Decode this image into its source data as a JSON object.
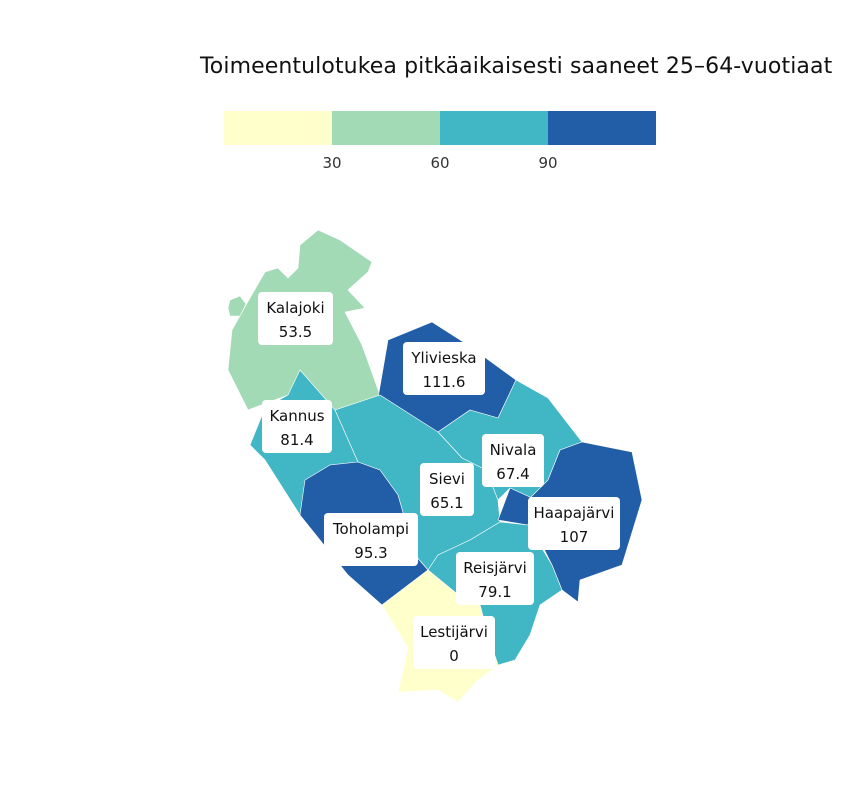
{
  "title": "Toimeentulotukea pitkäaikaisesti saaneet 25–64-vuotiaat",
  "legend": {
    "bins": [
      {
        "color": "#ffffcc"
      },
      {
        "color": "#a1dab4"
      },
      {
        "color": "#41b6c4"
      },
      {
        "color": "#225ea8"
      }
    ],
    "ticks": [
      "30",
      "60",
      "90"
    ]
  },
  "municipalities": [
    {
      "id": "kalajoki",
      "name": "Kalajoki",
      "value": "53.5",
      "color": "#a1dab4"
    },
    {
      "id": "ylivieska",
      "name": "Ylivieska",
      "value": "111.6",
      "color": "#225ea8"
    },
    {
      "id": "kannus",
      "name": "Kannus",
      "value": "81.4",
      "color": "#41b6c4"
    },
    {
      "id": "nivala",
      "name": "Nivala",
      "value": "67.4",
      "color": "#41b6c4"
    },
    {
      "id": "sievi",
      "name": "Sievi",
      "value": "65.1",
      "color": "#41b6c4"
    },
    {
      "id": "haapajarvi",
      "name": "Haapajärvi",
      "value": "107",
      "color": "#225ea8"
    },
    {
      "id": "toholampi",
      "name": "Toholampi",
      "value": "95.3",
      "color": "#225ea8"
    },
    {
      "id": "reisjarvi",
      "name": "Reisjärvi",
      "value": "79.1",
      "color": "#41b6c4"
    },
    {
      "id": "lestijarvi",
      "name": "Lestijärvi",
      "value": "0",
      "color": "#ffffcc"
    }
  ]
}
